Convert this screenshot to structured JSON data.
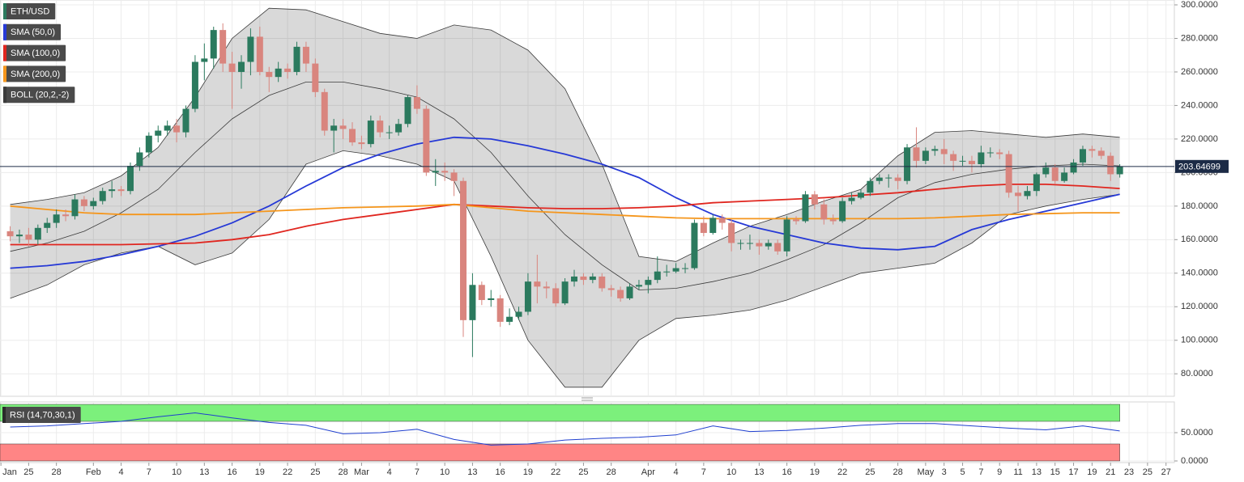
{
  "chart_data": [
    {
      "type": "candlestick",
      "name": "ETH/USD",
      "colors": {
        "up": "#2b7a5e",
        "down": "#d9857e"
      },
      "x": [
        23,
        24,
        25,
        26,
        27,
        28,
        29,
        30,
        31,
        32,
        33,
        34,
        35,
        36,
        37,
        38,
        39,
        40,
        41,
        42,
        43,
        44,
        45,
        46,
        47,
        48,
        49,
        50,
        51,
        52,
        53,
        54,
        55,
        56,
        57,
        58,
        59,
        60,
        61,
        62,
        63,
        64,
        65,
        66,
        67,
        68,
        69,
        70,
        71,
        72,
        73,
        74,
        75,
        76,
        77,
        78,
        79,
        80,
        81,
        82,
        83,
        84,
        85,
        86,
        87,
        88,
        89,
        90,
        91,
        92,
        93,
        94,
        95,
        96,
        97,
        98,
        99,
        100,
        101,
        102,
        103,
        104,
        105,
        106,
        107,
        108,
        109,
        110,
        111,
        112,
        113,
        114,
        115,
        116,
        117,
        118,
        119,
        120,
        121,
        122,
        123,
        124,
        125,
        126,
        127,
        128,
        129,
        130,
        131,
        132,
        133,
        134,
        135,
        136,
        137,
        138,
        139,
        140,
        141,
        142,
        143
      ],
      "open": [
        165,
        162,
        163,
        160,
        167,
        170,
        175,
        174,
        184,
        180,
        183,
        189,
        190,
        189,
        204,
        212,
        222,
        225,
        228,
        224,
        238,
        266,
        268,
        285,
        265,
        260,
        266,
        281,
        260,
        257,
        262,
        260,
        275,
        265,
        248,
        225,
        228,
        226,
        218,
        217,
        231,
        224,
        224,
        229,
        245,
        238,
        200,
        201,
        200,
        195,
        112,
        133,
        124,
        125,
        111,
        114,
        117,
        135,
        132,
        131,
        122,
        135,
        138,
        136,
        138,
        131,
        130,
        125,
        132,
        133,
        136,
        141,
        141,
        143,
        143,
        170,
        164,
        173,
        170,
        158,
        158,
        158,
        156,
        158,
        153,
        172,
        171,
        187,
        181,
        172,
        171,
        183,
        185,
        188,
        195,
        197,
        197,
        195,
        215,
        207,
        213,
        214,
        211,
        207,
        207,
        205,
        212,
        212,
        211,
        188,
        186,
        189,
        199,
        203,
        195,
        200,
        206,
        214,
        213,
        210,
        199
      ],
      "high": [
        168,
        166,
        167,
        169,
        173,
        178,
        178,
        187,
        186,
        185,
        191,
        195,
        192,
        206,
        215,
        224,
        228,
        231,
        232,
        240,
        270,
        277,
        287,
        289,
        272,
        270,
        286,
        287,
        263,
        266,
        265,
        278,
        278,
        268,
        250,
        232,
        232,
        230,
        222,
        234,
        234,
        228,
        232,
        246,
        252,
        240,
        208,
        206,
        202,
        197,
        140,
        135,
        130,
        127,
        119,
        120,
        140,
        151,
        135,
        134,
        137,
        142,
        140,
        140,
        140,
        133,
        132,
        134,
        136,
        138,
        150,
        145,
        146,
        146,
        172,
        174,
        175,
        175,
        172,
        160,
        163,
        160,
        160,
        160,
        174,
        174,
        189,
        189,
        184,
        175,
        185,
        188,
        190,
        197,
        199,
        199,
        199,
        217,
        227,
        215,
        216,
        220,
        213,
        210,
        210,
        216,
        215,
        214,
        213,
        192,
        192,
        200,
        206,
        205,
        203,
        208,
        216,
        216,
        215,
        212,
        205
      ],
      "low": [
        159,
        158,
        156,
        157,
        164,
        167,
        171,
        172,
        177,
        178,
        181,
        185,
        186,
        187,
        201,
        209,
        218,
        222,
        218,
        221,
        236,
        255,
        262,
        260,
        238,
        250,
        258,
        258,
        248,
        254,
        256,
        258,
        260,
        245,
        222,
        212,
        220,
        216,
        214,
        215,
        221,
        220,
        222,
        227,
        235,
        198,
        192,
        195,
        186,
        102,
        90,
        121,
        120,
        108,
        109,
        112,
        115,
        122,
        125,
        120,
        121,
        132,
        133,
        134,
        129,
        126,
        123,
        124,
        130,
        128,
        134,
        138,
        140,
        140,
        142,
        162,
        163,
        166,
        153,
        154,
        154,
        151,
        154,
        151,
        150,
        169,
        170,
        178,
        169,
        169,
        170,
        181,
        184,
        186,
        193,
        191,
        190,
        193,
        203,
        205,
        210,
        205,
        201,
        204,
        200,
        203,
        209,
        208,
        185,
        177,
        184,
        186,
        197,
        193,
        194,
        199,
        204,
        209,
        208,
        195,
        197
      ],
      "close": [
        162,
        163,
        160,
        167,
        170,
        175,
        174,
        184,
        180,
        183,
        189,
        190,
        189,
        204,
        212,
        222,
        225,
        228,
        224,
        238,
        266,
        268,
        285,
        265,
        260,
        266,
        281,
        260,
        257,
        262,
        260,
        275,
        265,
        248,
        225,
        228,
        226,
        218,
        217,
        231,
        224,
        224,
        229,
        245,
        238,
        200,
        201,
        200,
        195,
        112,
        133,
        124,
        125,
        111,
        114,
        117,
        135,
        132,
        131,
        122,
        135,
        138,
        136,
        138,
        131,
        130,
        125,
        132,
        133,
        136,
        141,
        141,
        143,
        143,
        170,
        164,
        173,
        170,
        158,
        158,
        158,
        156,
        158,
        153,
        172,
        171,
        187,
        181,
        172,
        171,
        183,
        185,
        188,
        195,
        197,
        197,
        195,
        215,
        207,
        213,
        214,
        211,
        207,
        207,
        205,
        212,
        212,
        211,
        188,
        186,
        189,
        199,
        203,
        195,
        200,
        206,
        214,
        213,
        210,
        199,
        203.64699
      ],
      "last_price": 203.64699,
      "line_x": [
        23,
        27,
        31,
        35,
        39,
        43,
        47,
        51,
        55,
        59,
        63,
        67,
        71,
        75,
        79,
        83,
        87,
        91,
        95,
        99,
        103,
        107,
        111,
        115,
        119,
        123,
        127,
        131,
        135,
        139,
        143
      ],
      "overlays": [
        {
          "name": "SMA (50,0)",
          "color": "#2639d6",
          "values": [
            143,
            144.5,
            147,
            151,
            156,
            162,
            170,
            180,
            192,
            203,
            211,
            217,
            221,
            220,
            216,
            211,
            205,
            197,
            185,
            175,
            168,
            163,
            158,
            155,
            154,
            156,
            166,
            172,
            177,
            182,
            187
          ]
        },
        {
          "name": "SMA (100,0)",
          "color": "#e0261f",
          "values": [
            157,
            157,
            157,
            157,
            157.5,
            158,
            160,
            163,
            168,
            172,
            175,
            178,
            181,
            180,
            179,
            178.5,
            178.5,
            179,
            180,
            182,
            183,
            184,
            185,
            186.5,
            188,
            190,
            192,
            193,
            193,
            192,
            190.5
          ]
        },
        {
          "name": "SMA (200,0)",
          "color": "#f5961c",
          "values": [
            180,
            178,
            176,
            175,
            175,
            175,
            176,
            177,
            178,
            179,
            179.5,
            180,
            181,
            179,
            177,
            176,
            175,
            174,
            173,
            172.5,
            172.5,
            172.5,
            172.5,
            172.5,
            172.5,
            173,
            174,
            175,
            175.5,
            176,
            176
          ]
        }
      ],
      "bands": {
        "name": "BOLL (20,2,-2)",
        "color": "#3a3a3a",
        "upper": [
          181,
          184,
          188,
          198,
          215,
          245,
          280,
          298,
          297,
          290,
          283,
          280,
          288,
          285,
          273,
          250,
          205,
          150,
          147,
          158,
          168,
          175,
          183,
          190,
          210,
          224,
          225,
          223,
          221,
          223,
          221
        ],
        "middle": [
          153,
          158,
          165,
          176,
          190,
          212,
          232,
          246,
          254,
          254,
          250,
          245,
          232,
          212,
          186,
          163,
          145,
          130,
          131,
          135,
          140,
          148,
          157,
          170,
          185,
          194,
          199,
          202,
          204,
          205,
          204
        ],
        "lower": [
          125,
          133,
          145,
          152,
          156,
          145,
          152,
          172,
          205,
          213,
          210,
          205,
          195,
          150,
          100,
          72,
          72,
          100,
          113,
          115,
          118,
          124,
          132,
          140,
          143,
          146,
          158,
          175,
          180,
          184,
          187
        ]
      },
      "xlim": [
        21.9,
        148.9
      ],
      "ylim": [
        66.6,
        302.9
      ],
      "yticks": [
        {
          "value": 80,
          "label": "80.0000"
        },
        {
          "value": 100,
          "label": "100.0000"
        },
        {
          "value": 120,
          "label": "120.0000"
        },
        {
          "value": 140,
          "label": "140.0000"
        },
        {
          "value": 160,
          "label": "160.0000"
        },
        {
          "value": 180,
          "label": "180.0000"
        },
        {
          "value": 200,
          "label": "200.0000"
        },
        {
          "value": 220,
          "label": "220.0000"
        },
        {
          "value": 240,
          "label": "240.0000"
        },
        {
          "value": 260,
          "label": "260.0000"
        },
        {
          "value": 280,
          "label": "280.0000"
        },
        {
          "value": 300,
          "label": "300.0000"
        }
      ],
      "grid": true
    },
    {
      "type": "line",
      "x": [
        23,
        27,
        31,
        35,
        39,
        43,
        47,
        51,
        55,
        59,
        63,
        67,
        71,
        75,
        79,
        83,
        87,
        91,
        95,
        99,
        103,
        107,
        111,
        115,
        119,
        123,
        127,
        131,
        135,
        139,
        143
      ],
      "series": [
        {
          "name": "RSI (14,70,30,1)",
          "color": "#1f3fcf",
          "values": [
            60,
            62,
            66,
            70,
            78,
            85,
            76,
            68,
            63,
            48,
            50,
            56,
            38,
            28,
            30,
            37,
            40,
            42,
            46,
            62,
            52,
            54,
            58,
            63,
            66,
            66,
            62,
            58,
            55,
            62,
            53
          ]
        }
      ],
      "zones": [
        {
          "from": 70,
          "to": 100,
          "color": "#7cf07c"
        },
        {
          "from": 0,
          "to": 30,
          "color": "#ff8585"
        }
      ],
      "xlim": [
        21.9,
        148.9
      ],
      "ylim": [
        -2.9,
        104.3
      ],
      "yticks": [
        {
          "value": 0,
          "label": "0.0000"
        },
        {
          "value": 50,
          "label": "50.0000"
        }
      ],
      "xticks": [
        {
          "value": 22,
          "label": "Jan"
        },
        25,
        28,
        {
          "value": 32,
          "label": "Feb"
        },
        {
          "value": 35,
          "label": "4"
        },
        {
          "value": 38,
          "label": "7"
        },
        {
          "value": 41,
          "label": "10"
        },
        {
          "value": 44,
          "label": "13"
        },
        {
          "value": 47,
          "label": "16"
        },
        {
          "value": 50,
          "label": "19"
        },
        {
          "value": 53,
          "label": "22"
        },
        {
          "value": 56,
          "label": "25"
        },
        {
          "value": 59,
          "label": "28"
        },
        {
          "value": 61,
          "label": "Mar"
        },
        {
          "value": 64,
          "label": "4"
        },
        {
          "value": 67,
          "label": "7"
        },
        {
          "value": 70,
          "label": "10"
        },
        {
          "value": 73,
          "label": "13"
        },
        {
          "value": 76,
          "label": "16"
        },
        {
          "value": 79,
          "label": "19"
        },
        {
          "value": 82,
          "label": "22"
        },
        {
          "value": 85,
          "label": "25"
        },
        {
          "value": 88,
          "label": "28"
        },
        {
          "value": 92,
          "label": "Apr"
        },
        {
          "value": 95,
          "label": "4"
        },
        {
          "value": 98,
          "label": "7"
        },
        {
          "value": 101,
          "label": "10"
        },
        {
          "value": 104,
          "label": "13"
        },
        {
          "value": 107,
          "label": "16"
        },
        {
          "value": 110,
          "label": "19"
        },
        {
          "value": 113,
          "label": "22"
        },
        {
          "value": 116,
          "label": "25"
        },
        {
          "value": 119,
          "label": "28"
        },
        {
          "value": 122,
          "label": "May"
        },
        {
          "value": 124,
          "label": "3"
        },
        {
          "value": 126,
          "label": "5"
        },
        {
          "value": 128,
          "label": "7"
        },
        {
          "value": 130,
          "label": "9"
        },
        {
          "value": 132,
          "label": "11"
        },
        {
          "value": 134,
          "label": "13"
        },
        {
          "value": 136,
          "label": "15"
        },
        {
          "value": 138,
          "label": "17"
        },
        {
          "value": 140,
          "label": "19"
        },
        {
          "value": 142,
          "label": "21"
        },
        {
          "value": 144,
          "label": "23"
        },
        {
          "value": 146,
          "label": "25"
        },
        {
          "value": 148,
          "label": "27"
        }
      ],
      "grid": true
    }
  ]
}
